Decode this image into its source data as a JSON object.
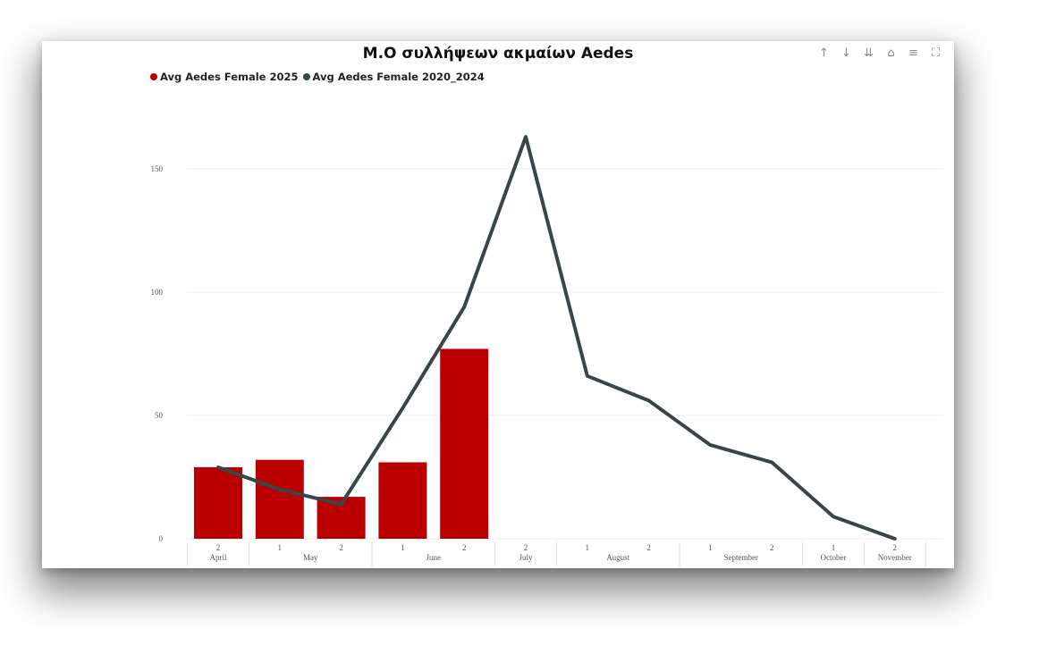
{
  "chart_data": {
    "type": "bar+line",
    "title": "Μ.Ο συλλήψεων ακμαίων Aedes",
    "x_categories": [
      {
        "month": "April",
        "half": "2"
      },
      {
        "month": "May",
        "half": "1"
      },
      {
        "month": "May",
        "half": "2"
      },
      {
        "month": "June",
        "half": "1"
      },
      {
        "month": "June",
        "half": "2"
      },
      {
        "month": "July",
        "half": "2"
      },
      {
        "month": "August",
        "half": "1"
      },
      {
        "month": "August",
        "half": "2"
      },
      {
        "month": "September",
        "half": "1"
      },
      {
        "month": "September",
        "half": "2"
      },
      {
        "month": "October",
        "half": "1"
      },
      {
        "month": "November",
        "half": "2"
      }
    ],
    "months": [
      "April",
      "May",
      "June",
      "July",
      "August",
      "September",
      "October",
      "November"
    ],
    "series": [
      {
        "name": "Avg Aedes Female 2025",
        "type": "bar",
        "color": "#bb0000",
        "values": [
          29,
          32,
          17,
          31,
          77,
          null,
          null,
          null,
          null,
          null,
          null,
          null
        ]
      },
      {
        "name": "Avg Aedes Female 2020_2024",
        "type": "line",
        "color": "#374649",
        "values": [
          29,
          20,
          14,
          53,
          94,
          163,
          66,
          56,
          38,
          31,
          9,
          0
        ]
      }
    ],
    "y_ticks": [
      "0",
      "50",
      "100",
      "150"
    ],
    "ylim": [
      0,
      175
    ],
    "grid": true,
    "legend_position": "top-left"
  },
  "toolbar": {
    "icons": [
      "arrow-up-icon",
      "arrow-down-icon",
      "double-arrow-down-icon",
      "drill-up-icon",
      "filter-icon",
      "focus-mode-icon"
    ]
  }
}
